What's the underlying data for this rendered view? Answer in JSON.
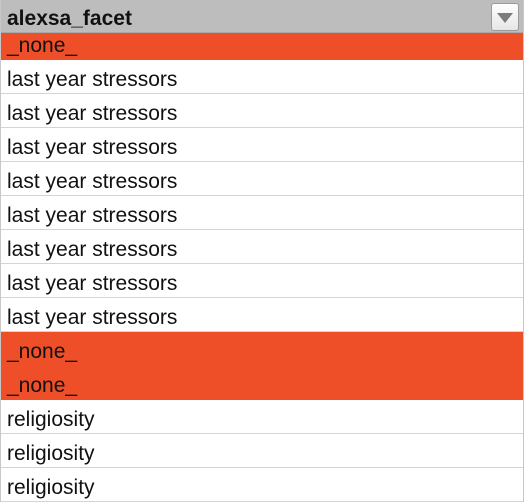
{
  "column": {
    "header": "alexsa_facet",
    "filter_icon": "dropdown-triangle-icon"
  },
  "colors": {
    "highlight": "#ee4e28",
    "header_bg": "#bdbdbd"
  },
  "rows": [
    {
      "value": "_none_",
      "highlighted": true
    },
    {
      "value": "last year stressors",
      "highlighted": false
    },
    {
      "value": "last year stressors",
      "highlighted": false
    },
    {
      "value": "last year stressors",
      "highlighted": false
    },
    {
      "value": "last year stressors",
      "highlighted": false
    },
    {
      "value": "last year stressors",
      "highlighted": false
    },
    {
      "value": "last year stressors",
      "highlighted": false
    },
    {
      "value": "last year stressors",
      "highlighted": false
    },
    {
      "value": "last year stressors",
      "highlighted": false
    },
    {
      "value": "_none_",
      "highlighted": true
    },
    {
      "value": "_none_",
      "highlighted": true
    },
    {
      "value": "religiosity",
      "highlighted": false
    },
    {
      "value": "religiosity",
      "highlighted": false
    },
    {
      "value": "religiosity",
      "highlighted": false
    }
  ]
}
